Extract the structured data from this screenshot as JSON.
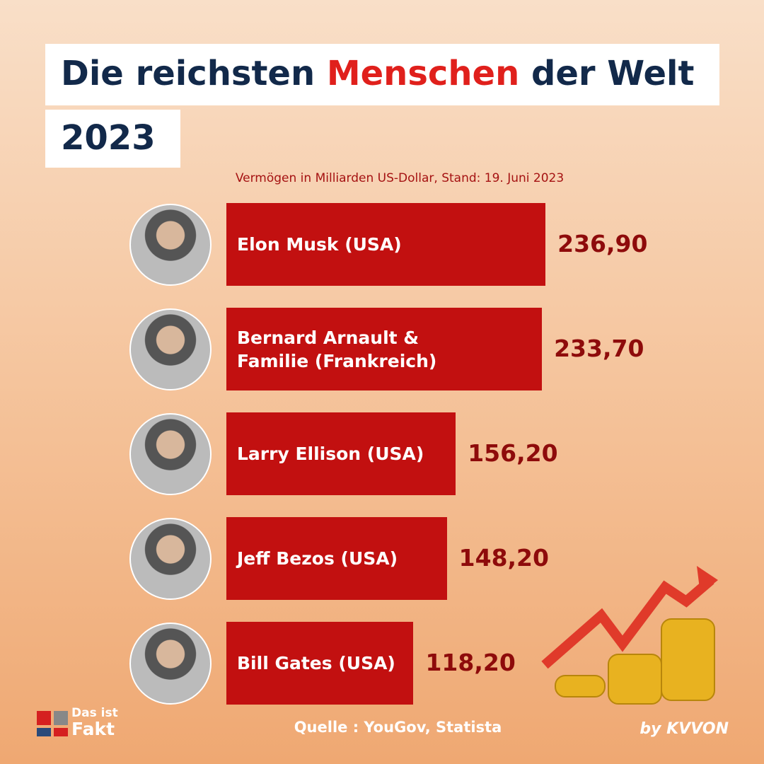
{
  "chart_data": {
    "type": "bar",
    "orientation": "horizontal",
    "title_parts": [
      "Die reichsten",
      "Menschen",
      "der Welt"
    ],
    "title_line2": "2023",
    "subtitle": "Vermögen in Milliarden US-Dollar, Stand: 19. Juni 2023",
    "categories": [
      "Elon Musk (USA)",
      "Bernard Arnault & Familie (Frankreich)",
      "Larry Ellison (USA)",
      "Jeff Bezos (USA)",
      "Bill Gates (USA)"
    ],
    "values": [
      236.9,
      233.7,
      156.2,
      148.2,
      118.2
    ],
    "value_labels": [
      "236,90",
      "233,70",
      "156,20",
      "148,20",
      "118,20"
    ],
    "color": "#c21010",
    "xlim": [
      -50,
      240
    ],
    "source": "Quelle : YouGov, Statista",
    "logo": [
      "Das ist",
      "Fakt"
    ],
    "credit": "by KVVON"
  }
}
